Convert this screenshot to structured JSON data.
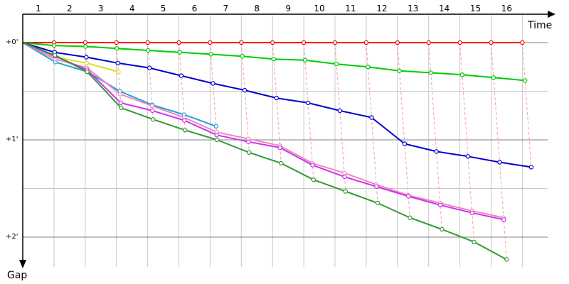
{
  "chart_data": {
    "type": "line",
    "title": "",
    "xlabel": "Time",
    "ylabel": "Gap",
    "x_ticks": [
      "1",
      "2",
      "3",
      "4",
      "5",
      "6",
      "7",
      "8",
      "9",
      "10",
      "11",
      "12",
      "13",
      "14",
      "15",
      "16"
    ],
    "y_ticks": [
      {
        "value": 0,
        "label": "+0'"
      },
      {
        "value": 1,
        "label": "+1'"
      },
      {
        "value": 2,
        "label": "+2'"
      }
    ],
    "ylim": [
      0,
      2.3
    ],
    "grid": true,
    "colors": {
      "minor_grid": "#c8c8c8",
      "major_grid": "#808080",
      "connector": "#f4a0a0",
      "axis": "#000000"
    },
    "series": [
      {
        "color": "#ff0000",
        "values": [
          0,
          0,
          0,
          0,
          0,
          0,
          0,
          0,
          0,
          0,
          0,
          0,
          0,
          0,
          0,
          0,
          0
        ]
      },
      {
        "color": "#00cc00",
        "values": [
          0,
          0.03,
          0.04,
          0.06,
          0.08,
          0.1,
          0.12,
          0.14,
          0.17,
          0.18,
          0.22,
          0.25,
          0.29,
          0.31,
          0.33,
          0.36,
          0.39
        ]
      },
      {
        "color": "#0000cc",
        "values": [
          0,
          0.1,
          0.15,
          0.21,
          0.26,
          0.34,
          0.42,
          0.49,
          0.57,
          0.62,
          0.7,
          0.77,
          1.04,
          1.12,
          1.17,
          1.23,
          1.28
        ]
      },
      {
        "color": "#dddd22",
        "values": [
          0,
          0.15,
          0.21,
          0.3
        ]
      },
      {
        "color": "#22a0dd",
        "values": [
          0,
          0.2,
          0.3,
          0.5,
          0.64,
          0.74,
          0.86
        ]
      },
      {
        "color": "#ee88bb",
        "values": [
          0,
          0.17,
          0.26,
          0.53,
          0.65,
          0.77,
          0.92,
          0.99,
          1.06,
          1.24,
          1.34,
          1.46,
          1.57,
          1.65,
          1.73,
          1.8
        ]
      },
      {
        "color": "#cc33ee",
        "values": [
          0,
          0.14,
          0.28,
          0.62,
          0.7,
          0.8,
          0.95,
          1.02,
          1.08,
          1.26,
          1.38,
          1.48,
          1.58,
          1.67,
          1.75,
          1.82
        ]
      },
      {
        "color": "#339933",
        "values": [
          0,
          0.13,
          0.3,
          0.67,
          0.79,
          0.9,
          1.0,
          1.13,
          1.24,
          1.41,
          1.53,
          1.65,
          1.8,
          1.92,
          2.05,
          2.23
        ]
      }
    ]
  }
}
